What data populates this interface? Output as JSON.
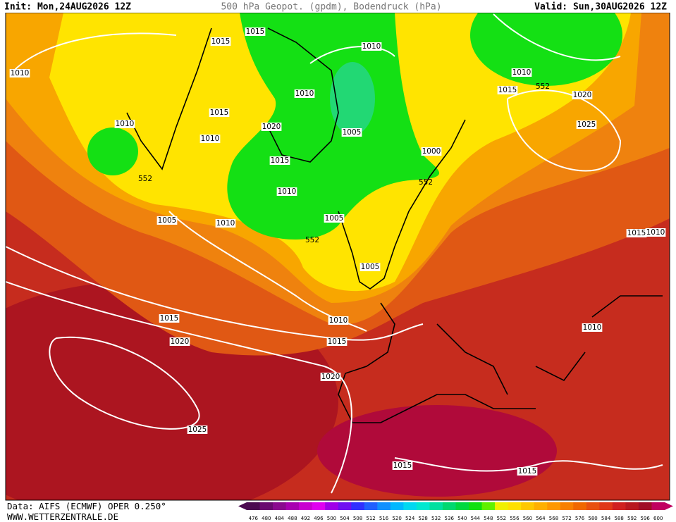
{
  "header": {
    "init": "Init: Mon,24AUG2026 12Z",
    "title": "500 hPa Geopot. (gpdm), Bodendruck (hPa)",
    "valid": "Valid: Sun,30AUG2026 12Z"
  },
  "map": {
    "isobar_labels": [
      1015,
      1015,
      1010,
      1010,
      1010,
      1010,
      1015,
      552,
      1020,
      1015,
      1010,
      1020,
      1005,
      1025,
      1010,
      1015,
      1000,
      552,
      552,
      1010,
      1005,
      1010,
      1005,
      552,
      1015,
      1010,
      1005,
      1015,
      1010,
      1010,
      1020,
      1015,
      1020,
      1025,
      1015,
      1015
    ]
  },
  "colorbar": {
    "labels": [
      476,
      480,
      484,
      488,
      492,
      496,
      500,
      504,
      508,
      512,
      516,
      520,
      524,
      528,
      532,
      536,
      540,
      544,
      548,
      552,
      556,
      560,
      564,
      568,
      572,
      576,
      580,
      584,
      588,
      592,
      596,
      600
    ],
    "colors": [
      "#4a0a50",
      "#6a0a70",
      "#8a0a8e",
      "#a800b0",
      "#c800d0",
      "#e000f0",
      "#a000e8",
      "#7010f0",
      "#3030ff",
      "#2060ff",
      "#1090ff",
      "#00b8ff",
      "#00d8f0",
      "#00e8d0",
      "#00e0a0",
      "#00d870",
      "#00d840",
      "#10e010",
      "#60f000",
      "#f0f000",
      "#ffe000",
      "#ffc800",
      "#ffb000",
      "#ff9800",
      "#f88000",
      "#f06800",
      "#e85010",
      "#e03818",
      "#d02020",
      "#b81820",
      "#a00e28",
      "#c00060"
    ]
  },
  "footer": {
    "source": "Data: AIFS (ECMWF) OPER 0.250°",
    "website": "WWW.WETTERZENTRALE.DE"
  }
}
